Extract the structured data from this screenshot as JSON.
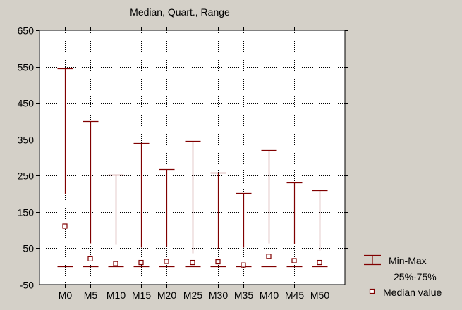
{
  "chart_data": {
    "type": "boxplot",
    "title": "Median, Quart., Range",
    "xlabel": "",
    "ylabel": "",
    "ylim": [
      -50,
      650
    ],
    "yticks": [
      -50,
      50,
      150,
      250,
      350,
      450,
      550,
      650
    ],
    "grid": true,
    "legend_position": "bottom-right",
    "categories": [
      "M0",
      "M5",
      "M10",
      "M15",
      "M20",
      "M25",
      "M30",
      "M35",
      "M40",
      "M45",
      "M50"
    ],
    "series": [
      {
        "name": "Min-Max",
        "kind": "range",
        "min": [
          0,
          0,
          0,
          0,
          0,
          0,
          0,
          0,
          0,
          0,
          0
        ],
        "max": [
          545,
          400,
          252,
          340,
          268,
          345,
          258,
          202,
          320,
          232,
          210
        ]
      },
      {
        "name": "25%-75%",
        "kind": "box",
        "q1": [
          0,
          0,
          0,
          0,
          0,
          0,
          0,
          0,
          0,
          0,
          0
        ],
        "q3": [
          200,
          65,
          60,
          52,
          57,
          38,
          48,
          52,
          65,
          62,
          45
        ]
      },
      {
        "name": "Median value",
        "kind": "point",
        "values": [
          110,
          20,
          7,
          10,
          13,
          10,
          12,
          3,
          27,
          15,
          10
        ]
      }
    ],
    "colors": {
      "whisker": "#800000",
      "marker": "#800000",
      "background": "#d4d0c8",
      "plot_background": "#ffffff",
      "grid": "#000000"
    }
  }
}
